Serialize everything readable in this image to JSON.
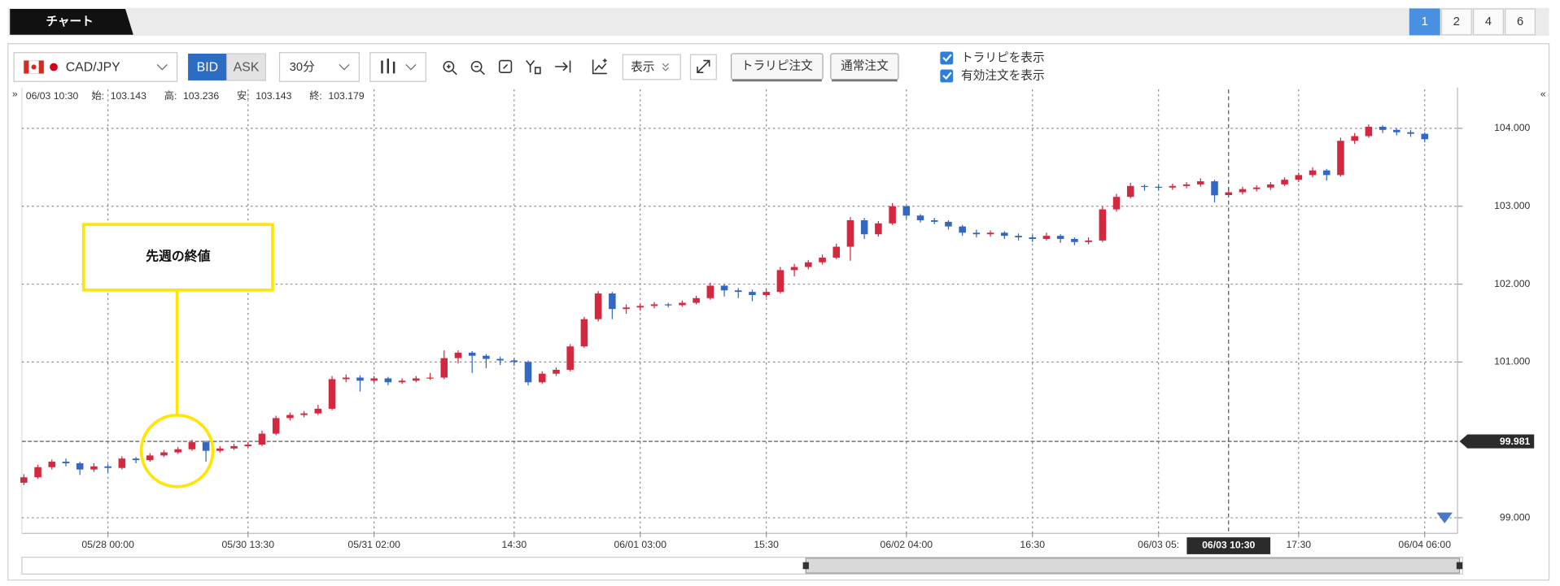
{
  "header": {
    "tab": "チャート",
    "layouts": [
      "1",
      "2",
      "4",
      "6"
    ]
  },
  "toolbar": {
    "pair": "CAD/JPY",
    "bid": "BID",
    "ask": "ASK",
    "interval": "30分",
    "display": "表示",
    "order_trap": "トラリピ注文",
    "order_normal": "通常注文",
    "checkboxes": [
      "トラリピを表示",
      "有効注文を表示"
    ]
  },
  "chart_data": {
    "type": "candlestick",
    "info": {
      "time": "06/03 10:30",
      "fields": [
        {
          "label": "始:",
          "value": 103.143
        },
        {
          "label": "高:",
          "value": 103.236
        },
        {
          "label": "安:",
          "value": 103.143
        },
        {
          "label": "終:",
          "value": 103.179
        }
      ]
    },
    "annotation": "先週の終値",
    "reference_line": 99.981,
    "up_color": "#d3283f",
    "down_color": "#3467bf",
    "grid": true,
    "ylim": [
      98.8,
      104.5
    ],
    "yticks": [
      {
        "value": 99,
        "label": "99.000"
      },
      {
        "value": 101,
        "label": "101.000"
      },
      {
        "value": 102,
        "label": "102.000"
      },
      {
        "value": 103,
        "label": "103.000"
      },
      {
        "value": 104,
        "label": "104.000"
      }
    ],
    "categories": [
      null,
      null,
      null,
      null,
      null,
      null,
      "05/28 00:00",
      null,
      null,
      null,
      null,
      null,
      null,
      null,
      null,
      null,
      "05/30 13:30",
      null,
      null,
      null,
      null,
      null,
      null,
      null,
      null,
      "05/31 02:00",
      null,
      null,
      null,
      null,
      null,
      null,
      null,
      null,
      null,
      "14:30",
      null,
      null,
      null,
      null,
      null,
      null,
      null,
      null,
      "06/01 03:00",
      null,
      null,
      null,
      null,
      null,
      null,
      null,
      null,
      "15:30",
      null,
      null,
      null,
      null,
      null,
      null,
      null,
      null,
      null,
      "06/02 04:00",
      null,
      null,
      null,
      null,
      null,
      null,
      null,
      null,
      "16:30",
      null,
      null,
      null,
      null,
      null,
      null,
      null,
      null,
      "06/03 05:",
      null,
      null,
      null,
      null,
      "06/03 10:30",
      null,
      null,
      null,
      null,
      "17:30",
      null,
      null,
      null,
      null,
      null,
      null,
      null,
      null,
      "06/04 06:00"
    ],
    "candles": [
      [
        99.45,
        99.56,
        99.42,
        99.52
      ],
      [
        99.52,
        99.68,
        99.5,
        99.65
      ],
      [
        99.65,
        99.75,
        99.62,
        99.72
      ],
      [
        99.72,
        99.76,
        99.66,
        99.7
      ],
      [
        99.7,
        99.72,
        99.55,
        99.62
      ],
      [
        99.62,
        99.7,
        99.59,
        99.66
      ],
      [
        99.66,
        99.69,
        99.58,
        99.64
      ],
      [
        99.64,
        99.79,
        99.62,
        99.76
      ],
      [
        99.76,
        99.78,
        99.7,
        99.74
      ],
      [
        99.74,
        99.83,
        99.72,
        99.8
      ],
      [
        99.8,
        99.87,
        99.78,
        99.84
      ],
      [
        99.84,
        99.91,
        99.82,
        99.88
      ],
      [
        99.88,
        100.0,
        99.86,
        99.97
      ],
      [
        99.97,
        99.99,
        99.72,
        99.86
      ],
      [
        99.86,
        99.92,
        99.84,
        99.89
      ],
      [
        99.89,
        99.95,
        99.87,
        99.92
      ],
      [
        99.92,
        99.97,
        99.9,
        99.94
      ],
      [
        99.94,
        100.12,
        99.92,
        100.08
      ],
      [
        100.08,
        100.31,
        100.06,
        100.28
      ],
      [
        100.28,
        100.35,
        100.25,
        100.32
      ],
      [
        100.32,
        100.37,
        100.29,
        100.34
      ],
      [
        100.34,
        100.45,
        100.32,
        100.4
      ],
      [
        100.4,
        100.82,
        100.38,
        100.78
      ],
      [
        100.78,
        100.84,
        100.74,
        100.8
      ],
      [
        100.8,
        100.83,
        100.62,
        100.76
      ],
      [
        100.76,
        100.82,
        100.73,
        100.79
      ],
      [
        100.79,
        100.81,
        100.7,
        100.74
      ],
      [
        100.74,
        100.79,
        100.72,
        100.76
      ],
      [
        100.76,
        100.82,
        100.74,
        100.79
      ],
      [
        100.79,
        100.86,
        100.77,
        100.8
      ],
      [
        100.8,
        101.15,
        100.78,
        101.05
      ],
      [
        101.05,
        101.15,
        100.98,
        101.12
      ],
      [
        101.12,
        101.14,
        100.86,
        101.08
      ],
      [
        101.08,
        101.1,
        100.92,
        101.04
      ],
      [
        101.04,
        101.07,
        100.96,
        101.02
      ],
      [
        101.02,
        101.05,
        100.95,
        101.0
      ],
      [
        101.0,
        101.02,
        100.7,
        100.74
      ],
      [
        100.74,
        100.88,
        100.72,
        100.85
      ],
      [
        100.85,
        100.93,
        100.82,
        100.9
      ],
      [
        100.9,
        101.23,
        100.88,
        101.2
      ],
      [
        101.2,
        101.58,
        101.18,
        101.55
      ],
      [
        101.55,
        101.91,
        101.52,
        101.88
      ],
      [
        101.88,
        101.9,
        101.55,
        101.68
      ],
      [
        101.68,
        101.74,
        101.62,
        101.7
      ],
      [
        101.7,
        101.75,
        101.66,
        101.72
      ],
      [
        101.72,
        101.77,
        101.69,
        101.74
      ],
      [
        101.74,
        101.76,
        101.7,
        101.73
      ],
      [
        101.73,
        101.79,
        101.71,
        101.76
      ],
      [
        101.76,
        101.85,
        101.74,
        101.82
      ],
      [
        101.82,
        102.02,
        101.8,
        101.98
      ],
      [
        101.98,
        102.0,
        101.84,
        101.92
      ],
      [
        101.92,
        101.95,
        101.82,
        101.9
      ],
      [
        101.9,
        101.93,
        101.78,
        101.86
      ],
      [
        101.86,
        101.94,
        101.83,
        101.9
      ],
      [
        101.9,
        102.22,
        101.88,
        102.18
      ],
      [
        102.18,
        102.26,
        102.1,
        102.22
      ],
      [
        102.22,
        102.31,
        102.19,
        102.28
      ],
      [
        102.28,
        102.38,
        102.25,
        102.34
      ],
      [
        102.34,
        102.52,
        102.32,
        102.48
      ],
      [
        102.48,
        102.86,
        102.3,
        102.82
      ],
      [
        102.82,
        102.85,
        102.58,
        102.64
      ],
      [
        102.64,
        102.81,
        102.61,
        102.78
      ],
      [
        102.78,
        103.04,
        102.76,
        103.0
      ],
      [
        103.0,
        103.02,
        102.84,
        102.88
      ],
      [
        102.88,
        102.9,
        102.79,
        102.82
      ],
      [
        102.82,
        102.85,
        102.77,
        102.8
      ],
      [
        102.8,
        102.82,
        102.7,
        102.74
      ],
      [
        102.74,
        102.76,
        102.62,
        102.66
      ],
      [
        102.66,
        102.7,
        102.6,
        102.64
      ],
      [
        102.64,
        102.69,
        102.61,
        102.66
      ],
      [
        102.66,
        102.68,
        102.58,
        102.62
      ],
      [
        102.62,
        102.65,
        102.56,
        102.6
      ],
      [
        102.6,
        102.63,
        102.54,
        102.58
      ],
      [
        102.58,
        102.66,
        102.56,
        102.62
      ],
      [
        102.62,
        102.64,
        102.53,
        102.58
      ],
      [
        102.58,
        102.6,
        102.5,
        102.54
      ],
      [
        102.54,
        102.6,
        102.51,
        102.56
      ],
      [
        102.56,
        103.0,
        102.54,
        102.96
      ],
      [
        102.96,
        103.16,
        102.93,
        103.12
      ],
      [
        103.12,
        103.3,
        103.1,
        103.26
      ],
      [
        103.26,
        103.28,
        103.2,
        103.25
      ],
      [
        103.25,
        103.28,
        103.2,
        103.24
      ],
      [
        103.24,
        103.29,
        103.21,
        103.26
      ],
      [
        103.26,
        103.31,
        103.23,
        103.28
      ],
      [
        103.28,
        103.36,
        103.25,
        103.32
      ],
      [
        103.32,
        103.34,
        103.05,
        103.14
      ],
      [
        103.143,
        103.236,
        103.143,
        103.179
      ],
      [
        103.18,
        103.25,
        103.15,
        103.22
      ],
      [
        103.22,
        103.27,
        103.19,
        103.24
      ],
      [
        103.24,
        103.31,
        103.21,
        103.28
      ],
      [
        103.28,
        103.37,
        103.26,
        103.34
      ],
      [
        103.34,
        103.43,
        103.31,
        103.4
      ],
      [
        103.4,
        103.5,
        103.37,
        103.46
      ],
      [
        103.46,
        103.48,
        103.33,
        103.4
      ],
      [
        103.4,
        103.88,
        103.38,
        103.84
      ],
      [
        103.84,
        103.94,
        103.8,
        103.9
      ],
      [
        103.9,
        104.05,
        103.88,
        104.02
      ],
      [
        104.02,
        104.04,
        103.94,
        103.98
      ],
      [
        103.98,
        104.0,
        103.91,
        103.95
      ],
      [
        103.95,
        103.98,
        103.89,
        103.93
      ],
      [
        103.93,
        103.95,
        103.82,
        103.86
      ]
    ]
  }
}
